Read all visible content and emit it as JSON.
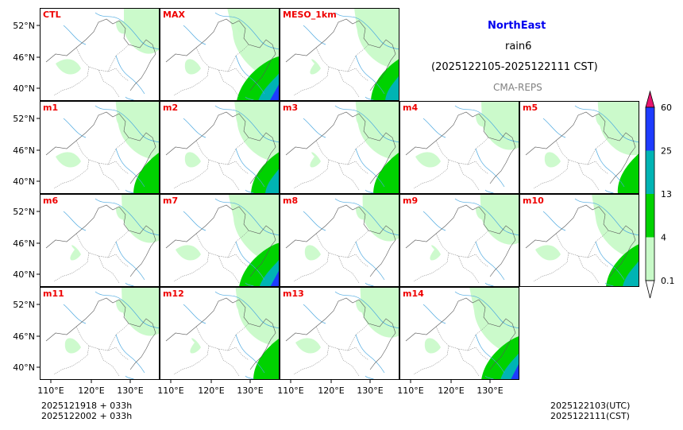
{
  "header": {
    "region": "NorthEast",
    "variable": "rain6",
    "period": "(2025122105-2025122111 CST)",
    "source": "CMA-REPS"
  },
  "panels": [
    {
      "label": "CTL",
      "row": 0,
      "col": 0,
      "rain": 0.2
    },
    {
      "label": "MAX",
      "row": 0,
      "col": 1,
      "rain": 0.9
    },
    {
      "label": "MESO_1km",
      "row": 0,
      "col": 2,
      "rain": 0.6
    },
    {
      "label": "m1",
      "row": 1,
      "col": 0,
      "rain": 0.55
    },
    {
      "label": "m2",
      "row": 1,
      "col": 1,
      "rain": 0.6
    },
    {
      "label": "m3",
      "row": 1,
      "col": 2,
      "rain": 0.55
    },
    {
      "label": "m4",
      "row": 1,
      "col": 3,
      "rain": 0.3
    },
    {
      "label": "m5",
      "row": 1,
      "col": 4,
      "rain": 0.45
    },
    {
      "label": "m6",
      "row": 2,
      "col": 0,
      "rain": 0.3
    },
    {
      "label": "m7",
      "row": 2,
      "col": 1,
      "rain": 0.85
    },
    {
      "label": "m8",
      "row": 2,
      "col": 2,
      "rain": 0.25
    },
    {
      "label": "m9",
      "row": 2,
      "col": 3,
      "rain": 0.35
    },
    {
      "label": "m10",
      "row": 2,
      "col": 4,
      "rain": 0.7
    },
    {
      "label": "m11",
      "row": 3,
      "col": 0,
      "rain": 0.3
    },
    {
      "label": "m12",
      "row": 3,
      "col": 1,
      "rain": 0.55
    },
    {
      "label": "m13",
      "row": 3,
      "col": 2,
      "rain": 0.35
    },
    {
      "label": "m14",
      "row": 3,
      "col": 3,
      "rain": 0.8
    }
  ],
  "axes": {
    "lat_ticks": [
      "52°N",
      "46°N",
      "40°N"
    ],
    "lon_ticks": [
      "110°E",
      "120°E",
      "130°E"
    ]
  },
  "colorbar": {
    "levels": [
      "0.1",
      "4",
      "13",
      "25",
      "60"
    ],
    "colors": [
      "#c8fac8",
      "#00d200",
      "#00b4b4",
      "#1e3cff"
    ],
    "under_color": "#ffffff",
    "over_color": "#e6146e"
  },
  "footer": {
    "left_line1": "2025121918  +  033h",
    "left_line2": "2025122002  +  033h",
    "right_line1": "2025122103(UTC)",
    "right_line2": "2025122111(CST)"
  }
}
